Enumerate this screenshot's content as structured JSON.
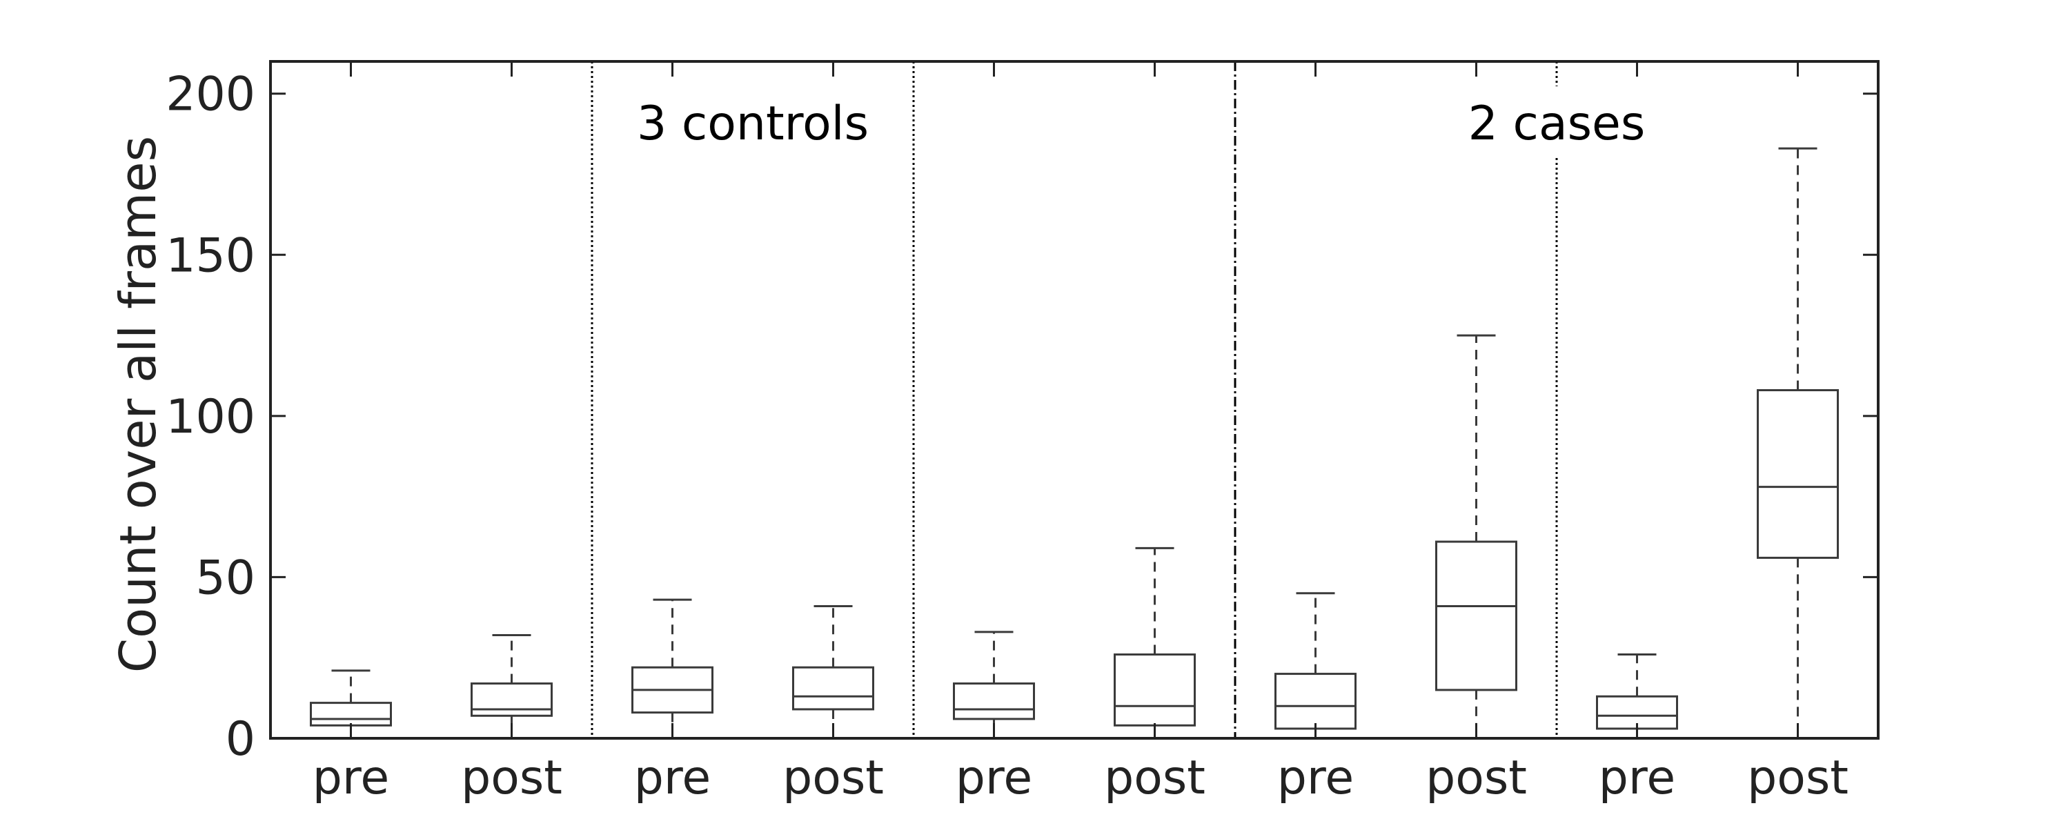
{
  "chart_data": {
    "type": "box",
    "ylabel": "Count over all frames",
    "ylim": [
      0,
      210
    ],
    "yticks": [
      0,
      50,
      100,
      150,
      200
    ],
    "categories": [
      "pre",
      "post",
      "pre",
      "post",
      "pre",
      "post",
      "pre",
      "post",
      "pre",
      "post"
    ],
    "series": [
      {
        "category": "pre",
        "whisker_low": 0,
        "q1": 4,
        "median": 6,
        "q3": 11,
        "whisker_high": 21
      },
      {
        "category": "post",
        "whisker_low": 0,
        "q1": 7,
        "median": 9,
        "q3": 17,
        "whisker_high": 32
      },
      {
        "category": "pre",
        "whisker_low": 0,
        "q1": 8,
        "median": 15,
        "q3": 22,
        "whisker_high": 43
      },
      {
        "category": "post",
        "whisker_low": 0,
        "q1": 9,
        "median": 13,
        "q3": 22,
        "whisker_high": 41
      },
      {
        "category": "pre",
        "whisker_low": 0,
        "q1": 6,
        "median": 9,
        "q3": 17,
        "whisker_high": 33
      },
      {
        "category": "post",
        "whisker_low": 0,
        "q1": 4,
        "median": 10,
        "q3": 26,
        "whisker_high": 59
      },
      {
        "category": "pre",
        "whisker_low": 0,
        "q1": 3,
        "median": 10,
        "q3": 20,
        "whisker_high": 45
      },
      {
        "category": "post",
        "whisker_low": 0,
        "q1": 15,
        "median": 41,
        "q3": 61,
        "whisker_high": 125
      },
      {
        "category": "pre",
        "whisker_low": 0,
        "q1": 3,
        "median": 7,
        "q3": 13,
        "whisker_high": 26
      },
      {
        "category": "post",
        "whisker_low": 0,
        "q1": 56,
        "median": 78,
        "q3": 108,
        "whisker_high": 183
      }
    ],
    "groups": [
      {
        "label": "3 controls",
        "subjects": 3
      },
      {
        "label": "2 cases",
        "subjects": 2
      }
    ],
    "grid": false,
    "legend": "none"
  },
  "colors": {
    "box_stroke": "#3a3a3a",
    "frame": "#222222",
    "separator": "#000000",
    "text": "#222222"
  }
}
